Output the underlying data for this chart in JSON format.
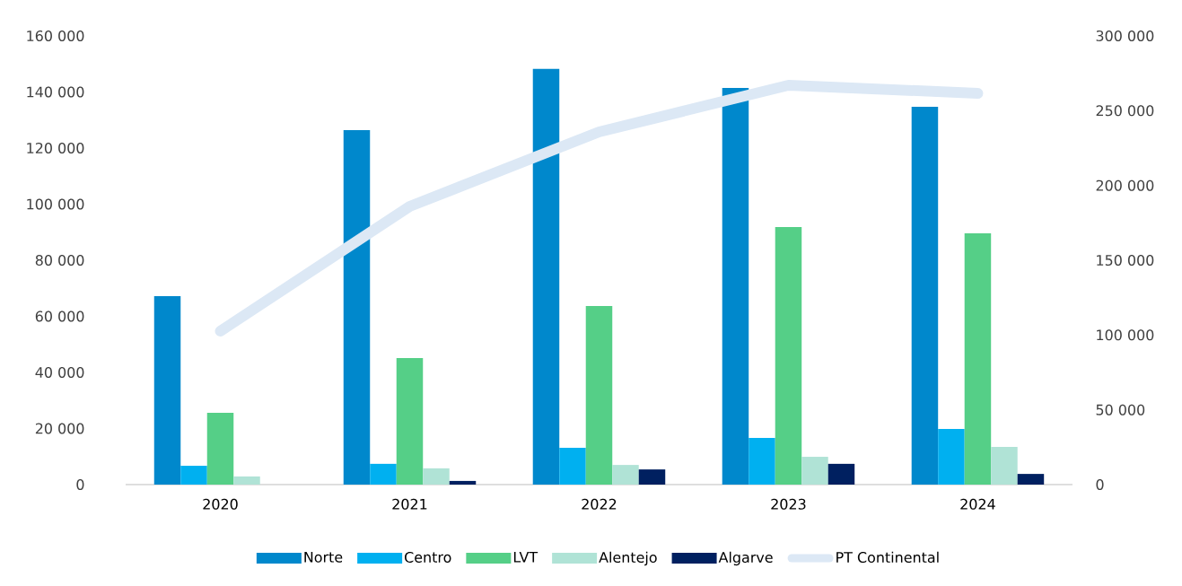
{
  "chart_data": {
    "type": "bar",
    "categories": [
      "2020",
      "2021",
      "2022",
      "2023",
      "2024"
    ],
    "series": [
      {
        "name": "Norte",
        "color": "#0088cc",
        "values": [
          67200,
          126400,
          148200,
          141400,
          134700
        ]
      },
      {
        "name": "Centro",
        "color": "#00b0f0",
        "values": [
          6700,
          7400,
          13100,
          16600,
          19800
        ]
      },
      {
        "name": "LVT",
        "color": "#55cf87",
        "values": [
          25600,
          45100,
          63700,
          91800,
          89600
        ]
      },
      {
        "name": "Alentejo",
        "color": "#b0e3d6",
        "values": [
          2900,
          5800,
          7000,
          9900,
          13400
        ]
      },
      {
        "name": "Algarve",
        "color": "#002060",
        "values": [
          0,
          1300,
          5400,
          7400,
          3800
        ]
      },
      {
        "name": "PT Continental",
        "color": "#dce8f5",
        "type": "line",
        "axis": "y2",
        "values": [
          102600,
          186000,
          235800,
          267000,
          261600
        ]
      }
    ],
    "ylim": [
      0,
      160000
    ],
    "yticks": [
      {
        "value": 0,
        "label": "0"
      },
      {
        "value": 20000,
        "label": "20 000"
      },
      {
        "value": 40000,
        "label": "40 000"
      },
      {
        "value": 60000,
        "label": "60 000"
      },
      {
        "value": 80000,
        "label": "80 000"
      },
      {
        "value": 100000,
        "label": "100 000"
      },
      {
        "value": 120000,
        "label": "120 000"
      },
      {
        "value": 140000,
        "label": "140 000"
      },
      {
        "value": 160000,
        "label": "160 000"
      }
    ],
    "y2lim": [
      0,
      300000
    ],
    "y2ticks": [
      {
        "value": 0,
        "label": "0"
      },
      {
        "value": 50000,
        "label": "50 000"
      },
      {
        "value": 100000,
        "label": "100 000"
      },
      {
        "value": 150000,
        "label": "150 000"
      },
      {
        "value": 200000,
        "label": "200 000"
      },
      {
        "value": 250000,
        "label": "250 000"
      },
      {
        "value": 300000,
        "label": "300 000"
      }
    ],
    "legend": "bottom"
  }
}
